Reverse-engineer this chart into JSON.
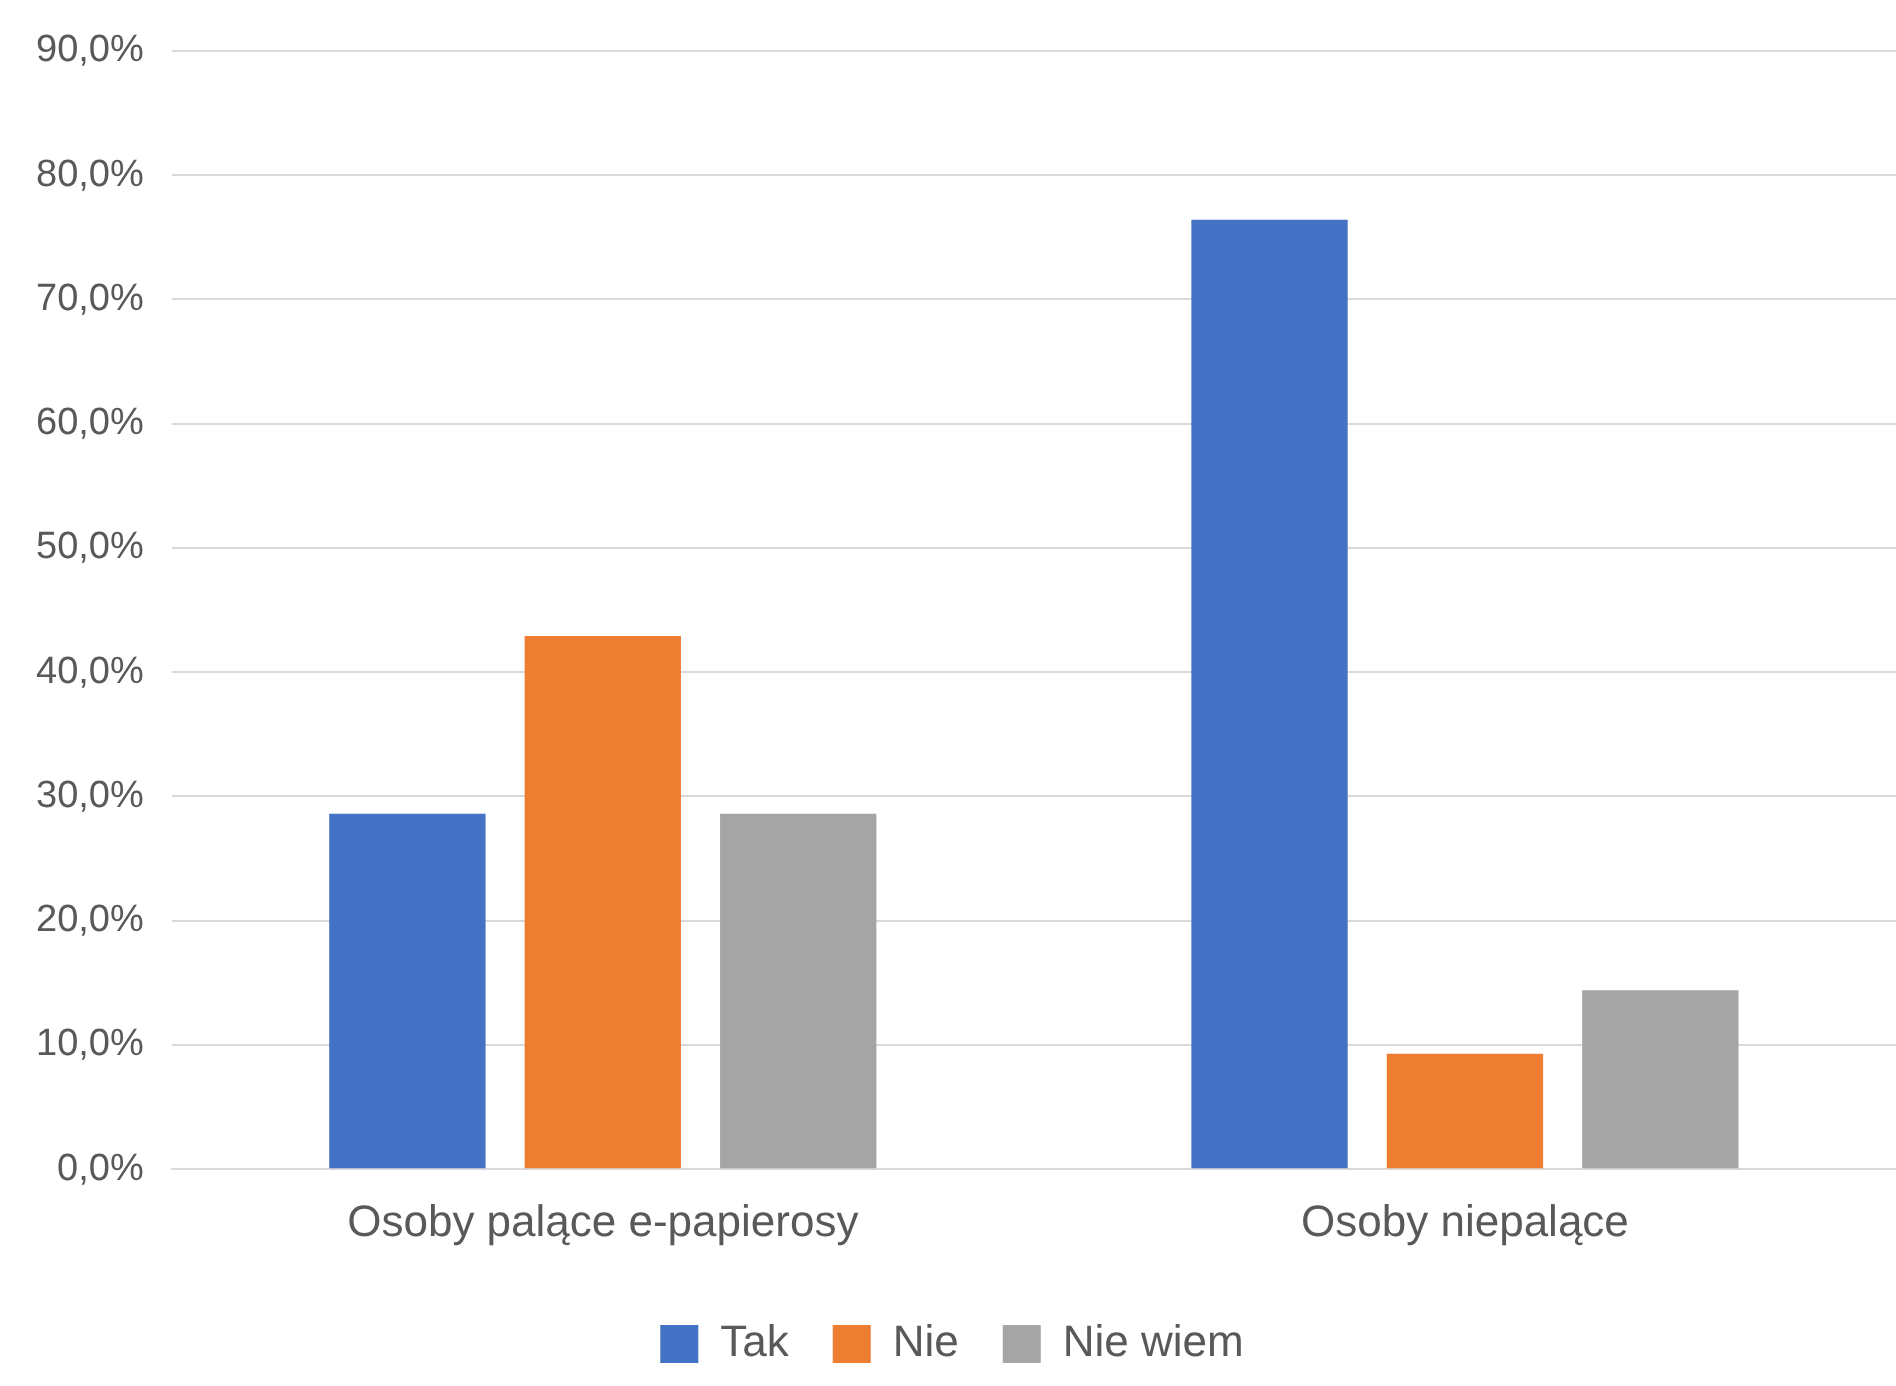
{
  "chart_data": {
    "type": "bar",
    "categories": [
      "Osoby palące e-papierosy",
      "Osoby niepalące"
    ],
    "series": [
      {
        "name": "Tak",
        "color": "#4472c4",
        "values": [
          28.6,
          76.4
        ]
      },
      {
        "name": "Nie",
        "color": "#ed7d31",
        "values": [
          42.9,
          9.3
        ]
      },
      {
        "name": "Nie wiem",
        "color": "#a5a5a5",
        "values": [
          28.6,
          14.4
        ]
      }
    ],
    "ylim": [
      0,
      90
    ],
    "yticks": [
      {
        "value": 0,
        "label": "0,0%"
      },
      {
        "value": 10,
        "label": "10,0%"
      },
      {
        "value": 20,
        "label": "20,0%"
      },
      {
        "value": 30,
        "label": "30,0%"
      },
      {
        "value": 40,
        "label": "40,0%"
      },
      {
        "value": 50,
        "label": "50,0%"
      },
      {
        "value": 60,
        "label": "60,0%"
      },
      {
        "value": 70,
        "label": "70,0%"
      },
      {
        "value": 80,
        "label": "80,0%"
      },
      {
        "value": 90,
        "label": "90,0%"
      }
    ],
    "grid": "y",
    "legend": "bottom"
  }
}
